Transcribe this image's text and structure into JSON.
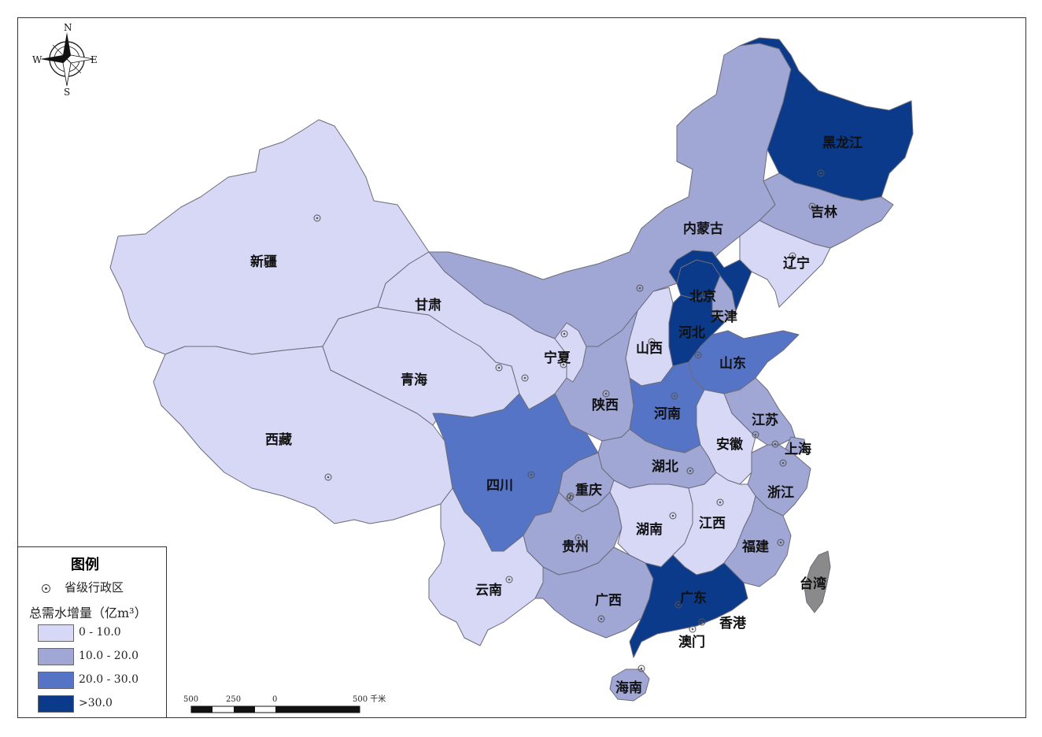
{
  "legend": {
    "title": "图例",
    "capital_label": "省级行政区",
    "subtitle": "总需水增量（亿m³）",
    "classes": [
      {
        "label": "0 - 10.0",
        "color": "#d6d8f6"
      },
      {
        "label": "10.0 - 20.0",
        "color": "#a1a7d4"
      },
      {
        "label": "20.0 - 30.0",
        "color": "#5674c6"
      },
      {
        "label": ">30.0",
        "color": "#0b3a8a"
      }
    ]
  },
  "compass": {
    "n": "N",
    "s": "S",
    "e": "E",
    "w": "W"
  },
  "scale_bar": {
    "labels": [
      "500",
      "250",
      "0",
      "500 千米"
    ]
  },
  "regions": {
    "heilongjiang": {
      "name": "黑龙江",
      "class": ">30.0"
    },
    "jilin": {
      "name": "吉林",
      "class": "10.0 - 20.0"
    },
    "liaoning": {
      "name": "辽宁",
      "class": "0 - 10.0"
    },
    "neimenggu": {
      "name": "内蒙古",
      "class": "10.0 - 20.0"
    },
    "beijing": {
      "name": "北京",
      "class": ">30.0"
    },
    "tianjin": {
      "name": "天津",
      "class": "10.0 - 20.0"
    },
    "hebei": {
      "name": "河北",
      "class": ">30.0"
    },
    "shanxi": {
      "name": "山西",
      "class": "0 - 10.0"
    },
    "shandong": {
      "name": "山东",
      "class": "20.0 - 30.0"
    },
    "henan": {
      "name": "河南",
      "class": "20.0 - 30.0"
    },
    "jiangsu": {
      "name": "江苏",
      "class": "10.0 - 20.0"
    },
    "shanghai": {
      "name": "上海",
      "class": "10.0 - 20.0"
    },
    "anhui": {
      "name": "安徽",
      "class": "0 - 10.0"
    },
    "zhejiang": {
      "name": "浙江",
      "class": "10.0 - 20.0"
    },
    "jiangxi": {
      "name": "江西",
      "class": "0 - 10.0"
    },
    "fujian": {
      "name": "福建",
      "class": "10.0 - 20.0"
    },
    "hubei": {
      "name": "湖北",
      "class": "10.0 - 20.0"
    },
    "hunan": {
      "name": "湖南",
      "class": "0 - 10.0"
    },
    "guangdong": {
      "name": "广东",
      "class": ">30.0"
    },
    "guangxi": {
      "name": "广西",
      "class": "10.0 - 20.0"
    },
    "hainan": {
      "name": "海南",
      "class": "10.0 - 20.0"
    },
    "xianggang": {
      "name": "香港"
    },
    "aomen": {
      "name": "澳门"
    },
    "taiwan": {
      "name": "台湾",
      "color": "#8a8a8a"
    },
    "guizhou": {
      "name": "贵州",
      "class": "10.0 - 20.0"
    },
    "yunnan": {
      "name": "云南",
      "class": "0 - 10.0"
    },
    "sichuan": {
      "name": "四川",
      "class": "20.0 - 30.0"
    },
    "chongqing": {
      "name": "重庆",
      "class": "10.0 - 20.0"
    },
    "shaanxi": {
      "name": "陕西",
      "class": "10.0 - 20.0"
    },
    "gansu": {
      "name": "甘肃",
      "class": "0 - 10.0"
    },
    "ningxia": {
      "name": "宁夏",
      "class": "0 - 10.0"
    },
    "qinghai": {
      "name": "青海",
      "class": "0 - 10.0"
    },
    "xizang": {
      "name": "西藏",
      "class": "0 - 10.0"
    },
    "xinjiang": {
      "name": "新疆",
      "class": "0 - 10.0"
    }
  }
}
